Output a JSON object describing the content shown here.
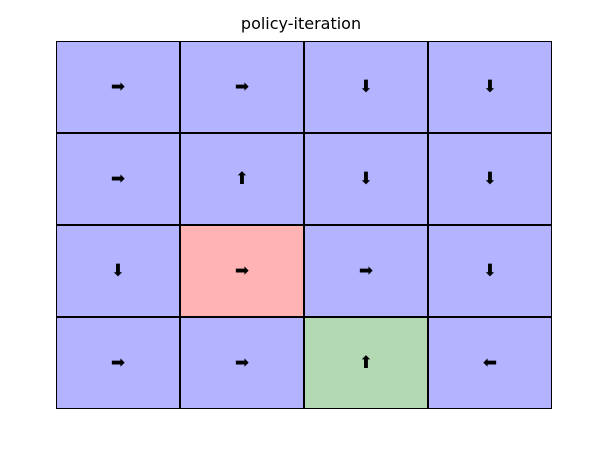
{
  "title": "policy-iteration",
  "colors": {
    "normal": "#b3b3ff",
    "hole": "#ffb3b3",
    "goal": "#b3d9b3",
    "grid_line": "#000000"
  },
  "icon_map": {
    "right": "➡",
    "left": "⬅",
    "up": "⬆",
    "down": "⬇"
  },
  "grid": {
    "rows": 4,
    "cols": 4,
    "cells": [
      {
        "row": 0,
        "col": 0,
        "action": "right",
        "type": "normal"
      },
      {
        "row": 0,
        "col": 1,
        "action": "right",
        "type": "normal"
      },
      {
        "row": 0,
        "col": 2,
        "action": "down",
        "type": "normal"
      },
      {
        "row": 0,
        "col": 3,
        "action": "down",
        "type": "normal"
      },
      {
        "row": 1,
        "col": 0,
        "action": "right",
        "type": "normal"
      },
      {
        "row": 1,
        "col": 1,
        "action": "up",
        "type": "normal"
      },
      {
        "row": 1,
        "col": 2,
        "action": "down",
        "type": "normal"
      },
      {
        "row": 1,
        "col": 3,
        "action": "down",
        "type": "normal"
      },
      {
        "row": 2,
        "col": 0,
        "action": "down",
        "type": "normal"
      },
      {
        "row": 2,
        "col": 1,
        "action": "right",
        "type": "hole"
      },
      {
        "row": 2,
        "col": 2,
        "action": "right",
        "type": "normal"
      },
      {
        "row": 2,
        "col": 3,
        "action": "down",
        "type": "normal"
      },
      {
        "row": 3,
        "col": 0,
        "action": "right",
        "type": "normal"
      },
      {
        "row": 3,
        "col": 1,
        "action": "right",
        "type": "normal"
      },
      {
        "row": 3,
        "col": 2,
        "action": "up",
        "type": "goal"
      },
      {
        "row": 3,
        "col": 3,
        "action": "left",
        "type": "normal"
      }
    ]
  }
}
